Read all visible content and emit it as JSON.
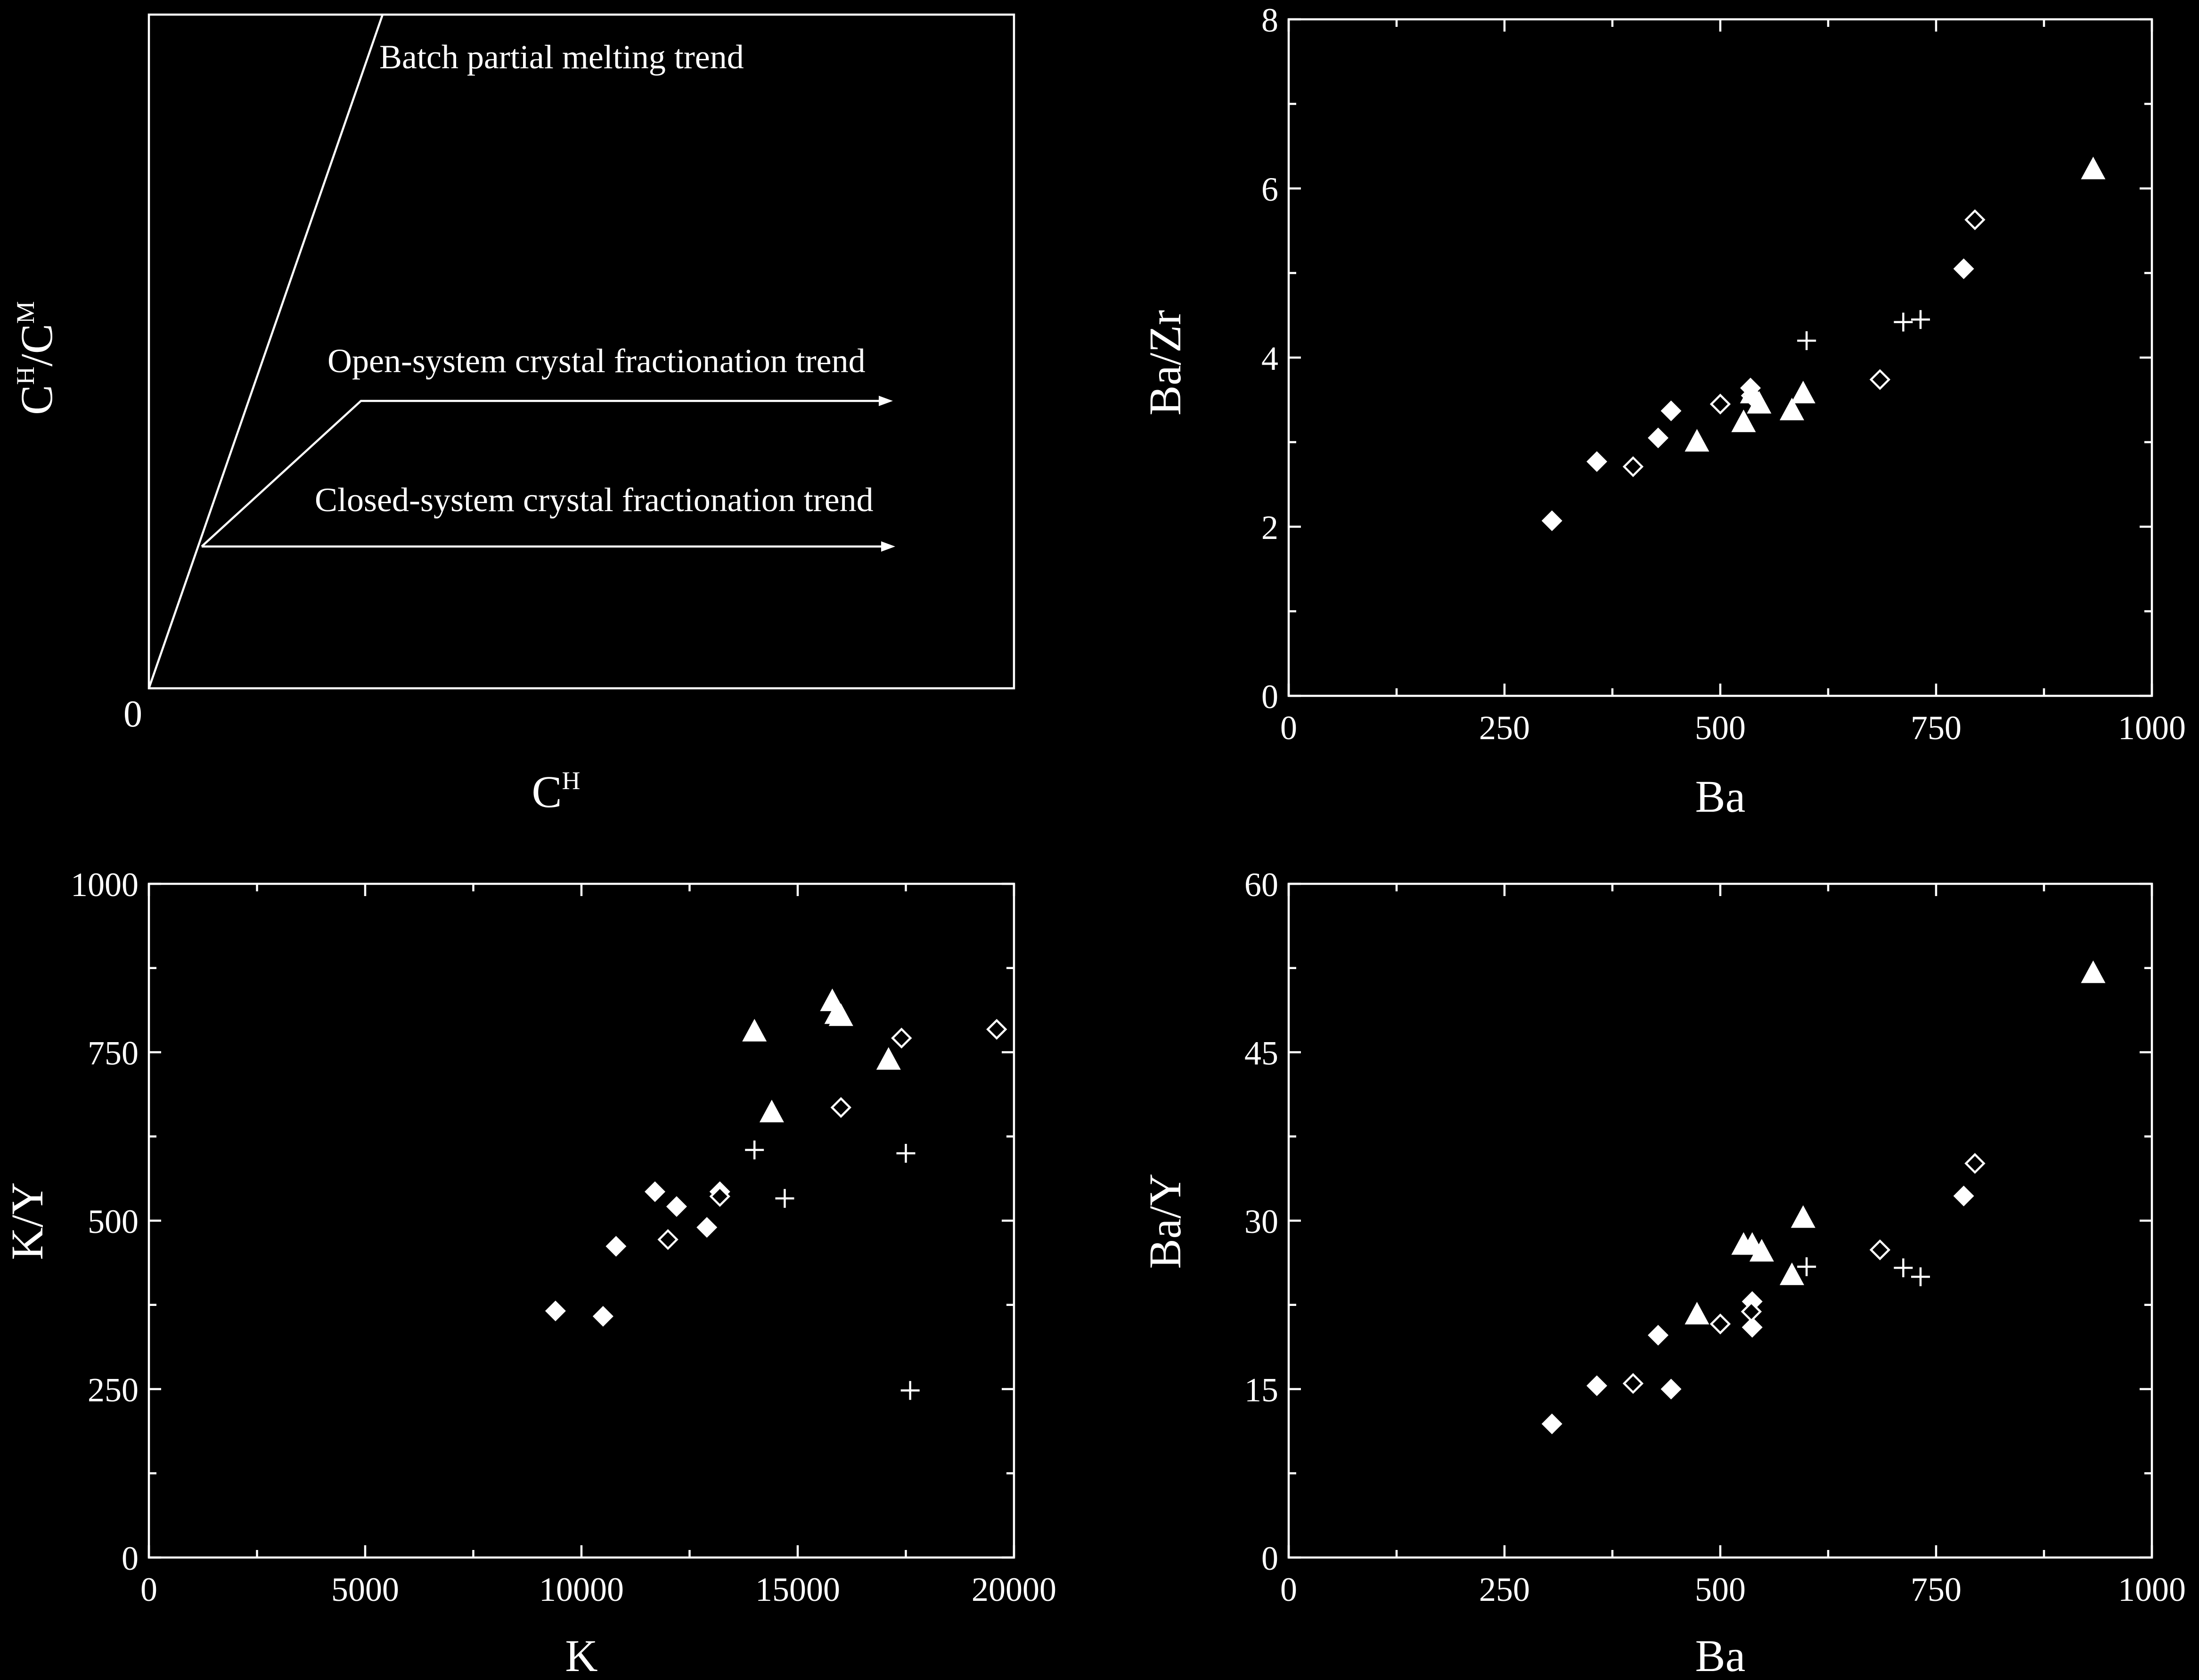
{
  "chart_data": [
    {
      "type": "diagram",
      "xlabel": {
        "main": "C",
        "sup": "H"
      },
      "ylabel": {
        "main1": "C",
        "sup1": "H",
        "slash": "/",
        "main2": "C",
        "sup2": "M"
      },
      "origin_label": "0",
      "annotations": [
        {
          "id": "batch",
          "text": "Batch partial melting trend"
        },
        {
          "id": "open",
          "text": "Open-system crystal fractionation trend"
        },
        {
          "id": "closed",
          "text": "Closed-system crystal fractionation trend"
        }
      ]
    },
    {
      "type": "scatter",
      "xlabel": "Ba",
      "ylabel": "Ba/Zr",
      "xlim": [
        0,
        1000
      ],
      "ylim": [
        0,
        8
      ],
      "xticks": [
        0,
        250,
        500,
        750,
        1000
      ],
      "yticks": [
        0,
        2,
        4,
        6,
        8
      ],
      "xminor": [
        125,
        375,
        625,
        875
      ],
      "yminor": [
        1,
        3,
        5,
        7
      ],
      "series": [
        {
          "marker": "filled-diamond",
          "points": [
            [
              305,
              2.07
            ],
            [
              357,
              2.77
            ],
            [
              428,
              3.05
            ],
            [
              443,
              3.37
            ],
            [
              535,
              3.64
            ],
            [
              782,
              5.05
            ]
          ]
        },
        {
          "marker": "open-diamond",
          "points": [
            [
              399,
              2.71
            ],
            [
              500,
              3.45
            ],
            [
              536,
              3.55
            ],
            [
              685,
              3.74
            ],
            [
              795,
              5.63
            ]
          ]
        },
        {
          "marker": "filled-triangle",
          "points": [
            [
              473,
              3.0
            ],
            [
              527,
              3.23
            ],
            [
              537,
              3.57
            ],
            [
              545,
              3.45
            ],
            [
              583,
              3.37
            ],
            [
              596,
              3.57
            ],
            [
              932,
              6.22
            ]
          ]
        },
        {
          "marker": "plus",
          "points": [
            [
              600,
              4.2
            ],
            [
              712,
              4.42
            ],
            [
              732,
              4.45
            ]
          ]
        }
      ]
    },
    {
      "type": "scatter",
      "xlabel": "K",
      "ylabel": "K/Y",
      "xlim": [
        0,
        20000
      ],
      "ylim": [
        0,
        1000
      ],
      "xticks": [
        0,
        5000,
        10000,
        15000,
        20000
      ],
      "yticks": [
        0,
        250,
        500,
        750,
        1000
      ],
      "xminor": [
        2500,
        7500,
        12500,
        17500
      ],
      "yminor": [
        125,
        375,
        625,
        875
      ],
      "series": [
        {
          "marker": "filled-diamond",
          "points": [
            [
              9400,
              366
            ],
            [
              10500,
              358
            ],
            [
              10800,
              462
            ],
            [
              11700,
              543
            ],
            [
              12200,
              521
            ],
            [
              12900,
              490
            ],
            [
              13200,
              543
            ]
          ]
        },
        {
          "marker": "open-diamond",
          "points": [
            [
              12000,
              472
            ],
            [
              13200,
              536
            ],
            [
              16000,
              668
            ],
            [
              17400,
              771
            ],
            [
              19600,
              784
            ]
          ]
        },
        {
          "marker": "filled-triangle",
          "points": [
            [
              14000,
              780
            ],
            [
              14400,
              660
            ],
            [
              15800,
              825
            ],
            [
              15900,
              806
            ],
            [
              16000,
              803
            ],
            [
              17100,
              738
            ]
          ]
        },
        {
          "marker": "plus",
          "points": [
            [
              14000,
              605
            ],
            [
              14700,
              533
            ],
            [
              17500,
              600
            ],
            [
              17600,
              248
            ]
          ]
        }
      ]
    },
    {
      "type": "scatter",
      "xlabel": "Ba",
      "ylabel": "Ba/Y",
      "xlim": [
        0,
        1000
      ],
      "ylim": [
        0,
        60
      ],
      "xticks": [
        0,
        250,
        500,
        750,
        1000
      ],
      "yticks": [
        0,
        15,
        30,
        45,
        60
      ],
      "xminor": [
        125,
        375,
        625,
        875
      ],
      "yminor": [
        7.5,
        22.5,
        37.5,
        52.5
      ],
      "series": [
        {
          "marker": "filled-diamond",
          "points": [
            [
              305,
              11.9
            ],
            [
              357,
              15.3
            ],
            [
              428,
              19.8
            ],
            [
              443,
              15.0
            ],
            [
              537,
              22.8
            ],
            [
              537,
              20.5
            ],
            [
              782,
              32.2
            ]
          ]
        },
        {
          "marker": "open-diamond",
          "points": [
            [
              399,
              15.5
            ],
            [
              500,
              20.8
            ],
            [
              536,
              21.9
            ],
            [
              685,
              27.4
            ],
            [
              795,
              35.1
            ]
          ]
        },
        {
          "marker": "filled-triangle",
          "points": [
            [
              473,
              21.6
            ],
            [
              527,
              27.8
            ],
            [
              537,
              27.8
            ],
            [
              548,
              27.2
            ],
            [
              583,
              25.1
            ],
            [
              596,
              30.2
            ],
            [
              932,
              52.0
            ]
          ]
        },
        {
          "marker": "plus",
          "points": [
            [
              600,
              25.9
            ],
            [
              712,
              25.8
            ],
            [
              732,
              25.0
            ]
          ]
        }
      ]
    }
  ]
}
